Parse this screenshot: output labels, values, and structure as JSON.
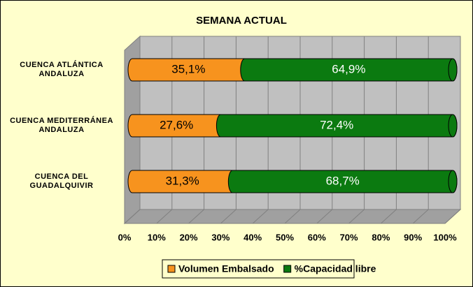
{
  "chart_data": {
    "type": "stacked_bar_horizontal",
    "title": "SEMANA ACTUAL",
    "categories": [
      "CUENCA ATLÁNTICA ANDALUZA",
      "CUENCA MEDITERRÁNEA ANDALUZA",
      "CUENCA DEL GUADALQUIVIR"
    ],
    "series": [
      {
        "name": "Volumen Embalsado",
        "color": "#f7931e",
        "values": [
          35.1,
          27.6,
          31.3
        ],
        "value_labels": [
          "35,1%",
          "27,6%",
          "31,3%"
        ]
      },
      {
        "name": "%Capacidad libre",
        "color": "#0b7a10",
        "values": [
          64.9,
          72.4,
          68.7
        ],
        "value_labels": [
          "64,9%",
          "72,4%",
          "68,7%"
        ]
      }
    ],
    "xlim": [
      0,
      100
    ],
    "xticks": [
      {
        "value": 0,
        "label": "0%"
      },
      {
        "value": 10,
        "label": "10%"
      },
      {
        "value": 20,
        "label": "20%"
      },
      {
        "value": 30,
        "label": "30%"
      },
      {
        "value": 40,
        "label": "40%"
      },
      {
        "value": 50,
        "label": "50%"
      },
      {
        "value": 60,
        "label": "60%"
      },
      {
        "value": 70,
        "label": "70%"
      },
      {
        "value": 80,
        "label": "80%"
      },
      {
        "value": 90,
        "label": "90%"
      },
      {
        "value": 100,
        "label": "100%"
      }
    ],
    "grid": true,
    "legend": "bottom"
  }
}
